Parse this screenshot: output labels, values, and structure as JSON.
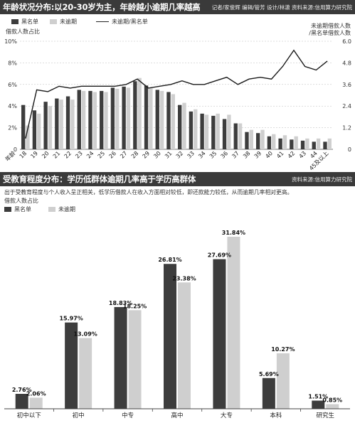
{
  "age_section": {
    "title": "年龄状况分布:以20-30岁为主，年龄越小逾期几率越高",
    "meta": "记者/家俊辉  编辑/管芳  设计/林潇  资料来源:信用算力研究院",
    "legend_black": "黑名单",
    "legend_gray": "未逾期",
    "legend_line": "未逾期/黑名单",
    "left_axis_label": "借款人数占比",
    "right_axis_label_1": "未逾期借款人数",
    "right_axis_label_2": "/黑名单借款人数"
  },
  "edu_section": {
    "title": "受教育程度分布：学历低群体逾期几率高于学历高群体",
    "source": "资料来源:信用算力研究院",
    "description": "出于受教育程度与个人收入呈正相关，低学历借款人在收入方面相对较低，即还款能力较低，从而逾期几率相对更高。",
    "axis_label": "借款人数占比",
    "legend_black": "黑名单",
    "legend_gray": "未逾期"
  },
  "colors": {
    "black": "#3d3d3d",
    "gray": "#cfcfcf",
    "header": "#3a3a3a",
    "line": "#1a1a1a"
  },
  "chart_data": [
    {
      "type": "bar",
      "categories": [
        "18",
        "19",
        "20",
        "21",
        "22",
        "23",
        "24",
        "25",
        "26",
        "27",
        "28",
        "29",
        "30",
        "31",
        "32",
        "33",
        "34",
        "35",
        "36",
        "37",
        "38",
        "39",
        "40",
        "41",
        "42",
        "43",
        "44",
        "45及以上"
      ],
      "x_axis_prefix": "年龄",
      "series": [
        {
          "name": "黑名单",
          "values": [
            4.1,
            3.6,
            4.4,
            4.7,
            4.9,
            5.5,
            5.4,
            5.4,
            5.7,
            5.8,
            6.3,
            5.9,
            5.5,
            5.3,
            4.1,
            3.5,
            3.3,
            3.1,
            2.8,
            2.4,
            1.6,
            1.5,
            1.2,
            1.0,
            0.9,
            0.8,
            0.7,
            0.7
          ]
        },
        {
          "name": "未逾期",
          "values": [
            2.2,
            3.3,
            4.0,
            4.6,
            4.6,
            5.4,
            5.3,
            5.3,
            5.6,
            5.7,
            6.6,
            5.7,
            5.4,
            5.1,
            4.3,
            3.7,
            3.2,
            3.3,
            3.2,
            2.4,
            1.8,
            1.8,
            1.4,
            1.3,
            1.2,
            1.0,
            1.0,
            1.0
          ]
        },
        {
          "name": "未逾期/黑名单",
          "axis": "right",
          "values": [
            0.6,
            3.3,
            3.2,
            3.5,
            3.4,
            3.5,
            3.5,
            3.5,
            3.5,
            3.6,
            3.9,
            3.4,
            3.5,
            3.6,
            3.8,
            3.6,
            3.6,
            3.8,
            4.0,
            3.6,
            3.9,
            4.0,
            3.9,
            4.6,
            5.5,
            4.6,
            4.4,
            4.9
          ]
        }
      ],
      "ylim": [
        0,
        10
      ],
      "yticks": [
        "0",
        "2%",
        "4%",
        "6%",
        "8%",
        "10%"
      ],
      "y2lim": [
        0,
        6
      ],
      "y2ticks": [
        "0",
        "1.2",
        "2.4",
        "3.6",
        "4.8",
        "6.0"
      ]
    },
    {
      "type": "bar",
      "categories": [
        "初中以下",
        "初中",
        "中专",
        "高中",
        "大专",
        "本科",
        "研究生"
      ],
      "series": [
        {
          "name": "黑名单",
          "values": [
            2.76,
            15.97,
            18.83,
            26.81,
            27.69,
            5.69,
            1.51
          ],
          "labels": [
            "2.76%",
            "15.97%",
            "18.83%",
            "26.81%",
            "27.69%",
            "5.69%",
            "1.51%"
          ]
        },
        {
          "name": "未逾期",
          "values": [
            2.06,
            13.09,
            18.25,
            23.38,
            31.84,
            10.27,
            0.85
          ],
          "labels": [
            "2.06%",
            "13.09%",
            "18.25%",
            "23.38%",
            "31.84%",
            "10.27%",
            "0.85%"
          ]
        }
      ],
      "ylim": [
        0,
        35
      ]
    }
  ]
}
